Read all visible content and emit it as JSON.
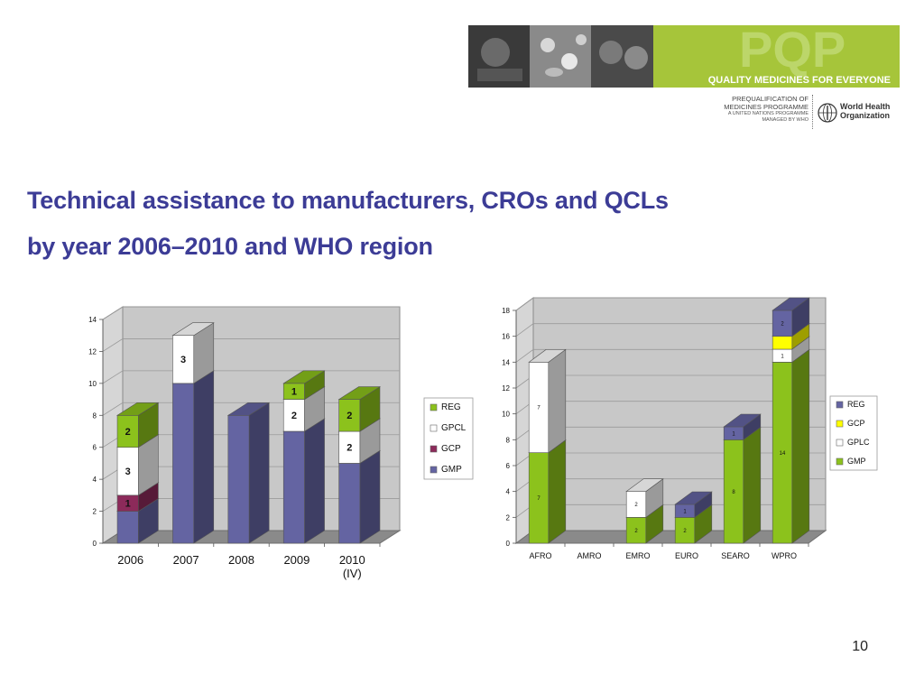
{
  "header": {
    "brand_letters": "PQP",
    "tagline": "QUALITY MEDICINES FOR EVERYONE",
    "programme_line1": "PREQUALIFICATION OF",
    "programme_line2": "MEDICINES PROGRAMME",
    "programme_line3": "A UNITED NATIONS PROGRAMME",
    "programme_line4": "MANAGED BY WHO",
    "org_line1": "World Health",
    "org_line2": "Organization",
    "colors": {
      "brand_green": "#a6c53a",
      "title": "#3c3c96"
    }
  },
  "slide": {
    "title_line1": "Technical assistance to manufacturers, CROs and QCLs",
    "title_line2": "by year 2006–2010 and WHO region",
    "page_number": "10"
  },
  "chart_data": [
    {
      "type": "bar",
      "stacked": true,
      "title": "",
      "xlabel": "",
      "ylabel": "",
      "categories": [
        "2006",
        "2007",
        "2008",
        "2009",
        "2010"
      ],
      "category_sublabels": [
        "",
        "",
        "",
        "",
        "(IV)"
      ],
      "ylim": [
        0,
        14
      ],
      "yticks": [
        0,
        2,
        4,
        6,
        8,
        10,
        12,
        14
      ],
      "grid": true,
      "legend_position": "right",
      "series": [
        {
          "name": "GMP",
          "color": "#6464a2",
          "values": [
            2,
            10,
            8,
            7,
            5
          ],
          "labels": [
            "",
            "",
            "",
            "",
            ""
          ]
        },
        {
          "name": "GCP",
          "color": "#8c2a5a",
          "values": [
            1,
            0,
            0,
            0,
            0
          ],
          "labels": [
            "1",
            "",
            "",
            "",
            ""
          ]
        },
        {
          "name": "GPCL",
          "color": "#ffffff",
          "values": [
            3,
            3,
            0,
            2,
            2
          ],
          "labels": [
            "3",
            "3",
            "",
            "2",
            "2"
          ]
        },
        {
          "name": "REG",
          "color": "#8cc21c",
          "values": [
            2,
            0,
            0,
            1,
            2
          ],
          "labels": [
            "2",
            "",
            "",
            "1",
            "2"
          ]
        }
      ]
    },
    {
      "type": "bar",
      "stacked": true,
      "title": "",
      "xlabel": "",
      "ylabel": "",
      "categories": [
        "AFRO",
        "AMRO",
        "EMRO",
        "EURO",
        "SEARO",
        "WPRO"
      ],
      "ylim": [
        0,
        18
      ],
      "yticks": [
        0,
        2,
        4,
        6,
        8,
        10,
        12,
        14,
        16,
        18
      ],
      "grid": true,
      "legend_position": "right",
      "series": [
        {
          "name": "GMP",
          "color": "#8cc21c",
          "values": [
            7,
            0,
            2,
            2,
            8,
            14
          ],
          "labels": [
            "7",
            "",
            "2",
            "2",
            "8",
            "14"
          ]
        },
        {
          "name": "GPLC",
          "color": "#ffffff",
          "values": [
            7,
            0,
            2,
            0,
            0,
            1
          ],
          "labels": [
            "7",
            "",
            "2",
            "",
            "",
            "1"
          ]
        },
        {
          "name": "GCP",
          "color": "#ffff00",
          "values": [
            0,
            0,
            0,
            0,
            0,
            1
          ],
          "labels": [
            "",
            "",
            "",
            "",
            "",
            ""
          ]
        },
        {
          "name": "REG",
          "color": "#6464a2",
          "values": [
            0,
            0,
            0,
            1,
            1,
            2
          ],
          "labels": [
            "",
            "",
            "",
            "1",
            "1",
            "2"
          ]
        }
      ]
    }
  ]
}
